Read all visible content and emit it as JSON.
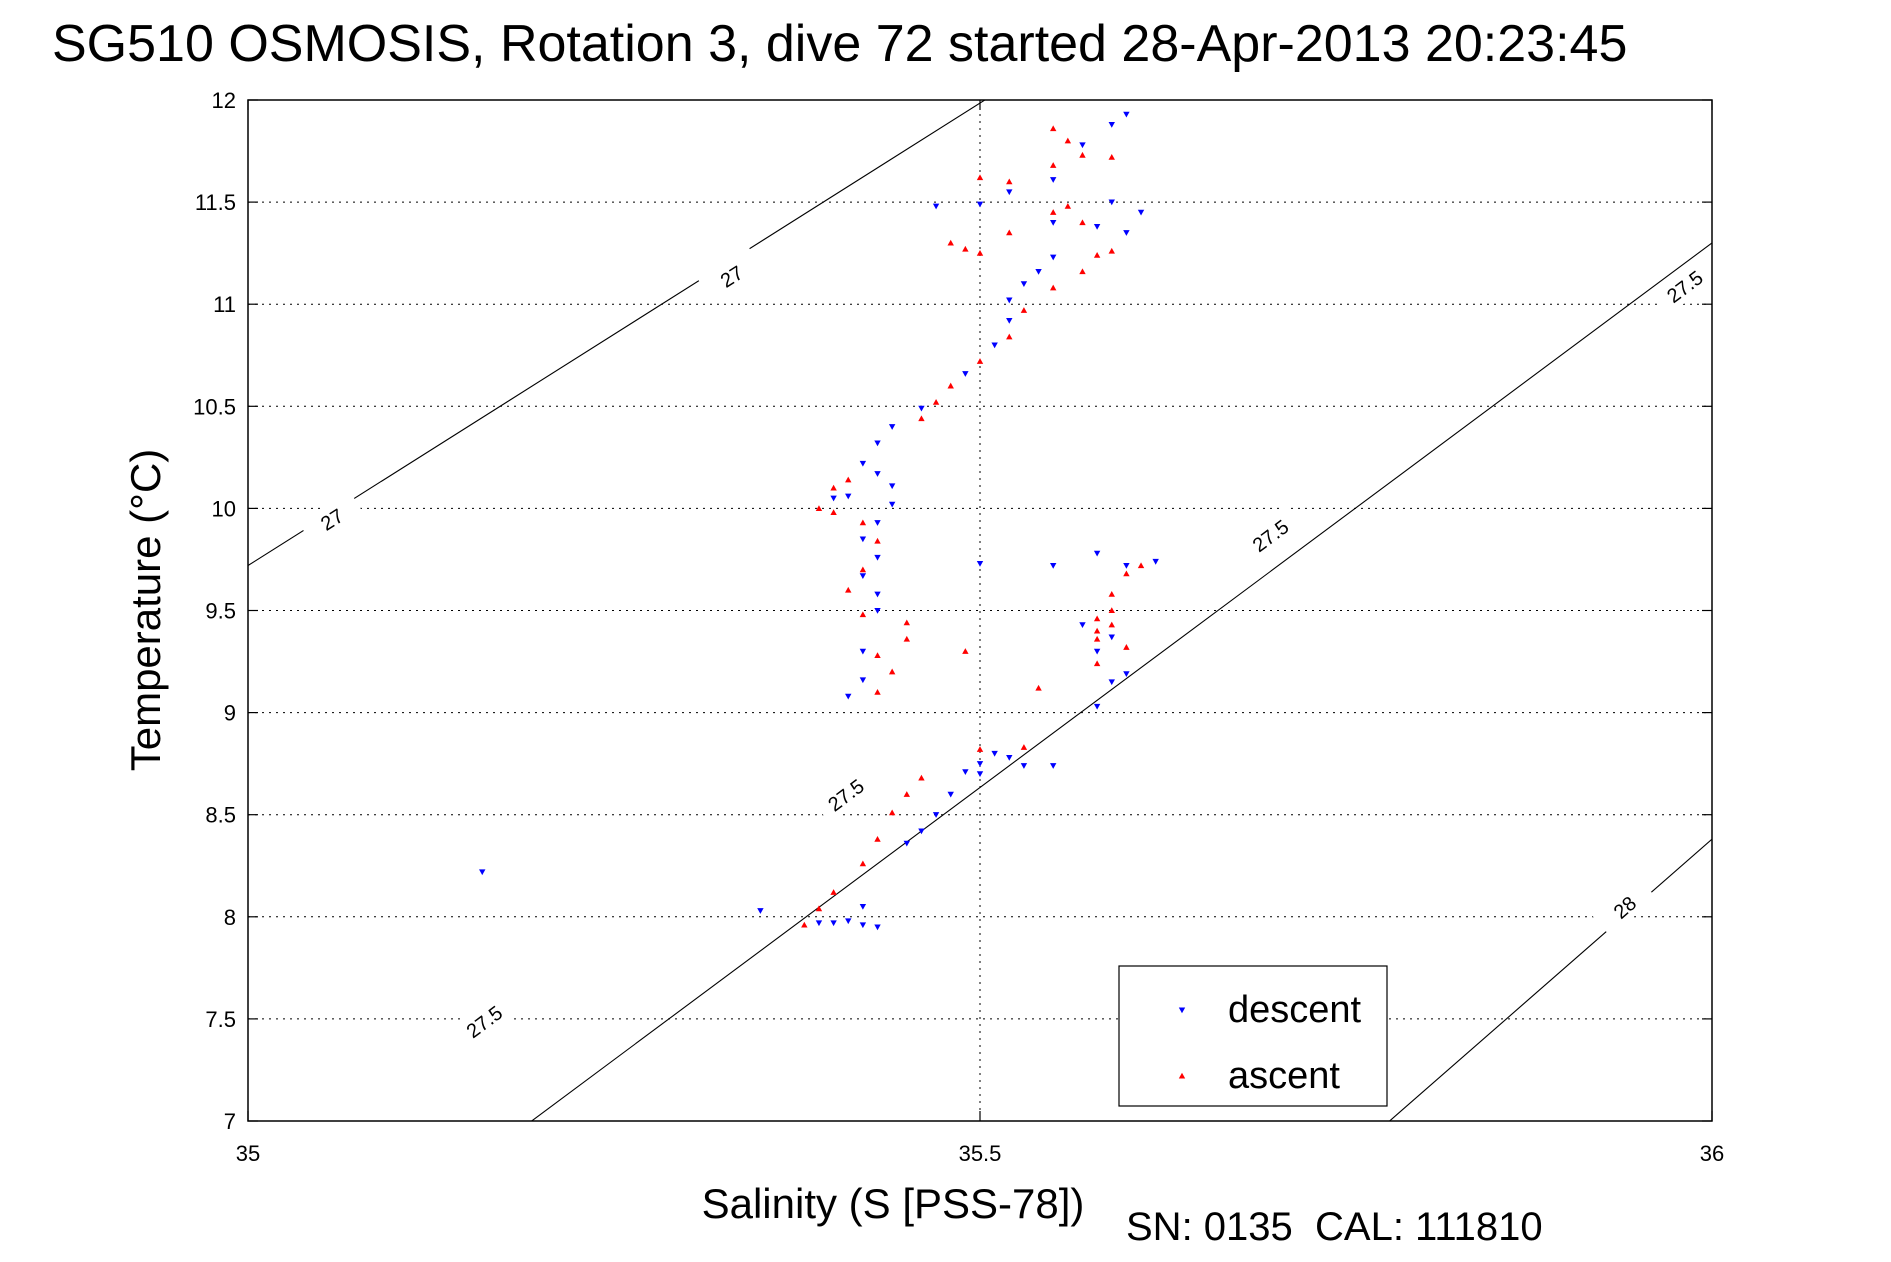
{
  "title": "SG510 OSMOSIS, Rotation 3, dive 72 started 28-Apr-2013 20:23:45",
  "footer": "SN: 0135  CAL: 111810",
  "chart_data": {
    "type": "scatter",
    "xlabel": "Salinity (S [PSS-78])",
    "ylabel": "Temperature (°C)",
    "xlim": [
      35,
      36
    ],
    "ylim": [
      7,
      12
    ],
    "xticks": [
      35,
      35.5,
      36
    ],
    "xtick_labels": [
      "35",
      "35.5",
      "36"
    ],
    "yticks": [
      7,
      7.5,
      8,
      8.5,
      9,
      9.5,
      10,
      10.5,
      11,
      11.5,
      12
    ],
    "ytick_labels": [
      "7",
      "7.5",
      "8",
      "8.5",
      "9",
      "9.5",
      "10",
      "10.5",
      "11",
      "11.5",
      "12"
    ],
    "grid": true,
    "legend_position": "bottom-right",
    "series": [
      {
        "name": "descent",
        "color": "#0000ff",
        "marker": "down-triangle",
        "points": [
          [
            35.16,
            8.22
          ],
          [
            35.35,
            8.03
          ],
          [
            35.39,
            7.97
          ],
          [
            35.4,
            7.97
          ],
          [
            35.41,
            7.98
          ],
          [
            35.42,
            7.96
          ],
          [
            35.43,
            7.95
          ],
          [
            35.42,
            8.05
          ],
          [
            35.45,
            8.36
          ],
          [
            35.46,
            8.42
          ],
          [
            35.47,
            8.5
          ],
          [
            35.48,
            8.6
          ],
          [
            35.49,
            8.71
          ],
          [
            35.5,
            8.75
          ],
          [
            35.51,
            8.8
          ],
          [
            35.52,
            8.78
          ],
          [
            35.53,
            8.74
          ],
          [
            35.41,
            9.08
          ],
          [
            35.42,
            9.16
          ],
          [
            35.42,
            9.3
          ],
          [
            35.43,
            9.5
          ],
          [
            35.43,
            9.58
          ],
          [
            35.42,
            9.67
          ],
          [
            35.43,
            9.76
          ],
          [
            35.42,
            9.85
          ],
          [
            35.43,
            9.93
          ],
          [
            35.44,
            10.02
          ],
          [
            35.44,
            10.11
          ],
          [
            35.43,
            10.17
          ],
          [
            35.41,
            10.06
          ],
          [
            35.4,
            10.05
          ],
          [
            35.42,
            10.22
          ],
          [
            35.43,
            10.32
          ],
          [
            35.44,
            10.4
          ],
          [
            35.46,
            10.49
          ],
          [
            35.49,
            10.66
          ],
          [
            35.51,
            10.8
          ],
          [
            35.52,
            10.92
          ],
          [
            35.52,
            11.02
          ],
          [
            35.53,
            11.1
          ],
          [
            35.54,
            11.16
          ],
          [
            35.55,
            11.23
          ],
          [
            35.5,
            11.49
          ],
          [
            35.47,
            11.48
          ],
          [
            35.52,
            11.55
          ],
          [
            35.55,
            11.61
          ],
          [
            35.57,
            11.78
          ],
          [
            35.59,
            11.88
          ],
          [
            35.6,
            11.93
          ],
          [
            35.55,
            11.4
          ],
          [
            35.58,
            11.38
          ],
          [
            35.6,
            11.35
          ],
          [
            35.61,
            11.45
          ],
          [
            35.59,
            11.5
          ],
          [
            35.5,
            9.73
          ],
          [
            35.55,
            9.72
          ],
          [
            35.58,
            9.78
          ],
          [
            35.6,
            9.72
          ],
          [
            35.62,
            9.74
          ],
          [
            35.57,
            9.43
          ],
          [
            35.59,
            9.37
          ],
          [
            35.58,
            9.3
          ],
          [
            35.59,
            9.15
          ],
          [
            35.58,
            9.03
          ],
          [
            35.6,
            9.19
          ],
          [
            35.55,
            8.74
          ],
          [
            35.5,
            8.7
          ]
        ]
      },
      {
        "name": "ascent",
        "color": "#ff0000",
        "marker": "up-triangle",
        "points": [
          [
            35.38,
            7.96
          ],
          [
            35.39,
            8.04
          ],
          [
            35.4,
            8.12
          ],
          [
            35.42,
            8.26
          ],
          [
            35.43,
            8.38
          ],
          [
            35.44,
            8.51
          ],
          [
            35.45,
            8.6
          ],
          [
            35.46,
            8.68
          ],
          [
            35.5,
            8.82
          ],
          [
            35.53,
            8.83
          ],
          [
            35.54,
            9.12
          ],
          [
            35.49,
            9.3
          ],
          [
            35.43,
            9.1
          ],
          [
            35.44,
            9.2
          ],
          [
            35.43,
            9.28
          ],
          [
            35.45,
            9.36
          ],
          [
            35.45,
            9.44
          ],
          [
            35.42,
            9.48
          ],
          [
            35.41,
            9.6
          ],
          [
            35.42,
            9.7
          ],
          [
            35.43,
            9.84
          ],
          [
            35.42,
            9.93
          ],
          [
            35.4,
            9.98
          ],
          [
            35.39,
            10.0
          ],
          [
            35.4,
            10.1
          ],
          [
            35.41,
            10.14
          ],
          [
            35.46,
            10.44
          ],
          [
            35.47,
            10.52
          ],
          [
            35.48,
            10.6
          ],
          [
            35.5,
            10.72
          ],
          [
            35.52,
            10.84
          ],
          [
            35.53,
            10.97
          ],
          [
            35.55,
            11.08
          ],
          [
            35.57,
            11.16
          ],
          [
            35.58,
            11.24
          ],
          [
            35.59,
            11.26
          ],
          [
            35.48,
            11.3
          ],
          [
            35.49,
            11.27
          ],
          [
            35.5,
            11.25
          ],
          [
            35.52,
            11.35
          ],
          [
            35.55,
            11.45
          ],
          [
            35.57,
            11.4
          ],
          [
            35.56,
            11.48
          ],
          [
            35.5,
            11.62
          ],
          [
            35.52,
            11.6
          ],
          [
            35.55,
            11.68
          ],
          [
            35.57,
            11.73
          ],
          [
            35.59,
            11.72
          ],
          [
            35.56,
            11.8
          ],
          [
            35.55,
            11.86
          ],
          [
            35.58,
            9.4
          ],
          [
            35.58,
            9.36
          ],
          [
            35.59,
            9.43
          ],
          [
            35.6,
            9.32
          ],
          [
            35.58,
            9.24
          ],
          [
            35.59,
            9.58
          ],
          [
            35.6,
            9.68
          ],
          [
            35.61,
            9.72
          ],
          [
            35.59,
            9.5
          ],
          [
            35.58,
            9.46
          ]
        ]
      }
    ],
    "contours": [
      {
        "label": "27",
        "label_positions": [
          [
            35.33,
            11.14
          ],
          [
            35.057,
            9.95
          ]
        ]
      },
      {
        "label": "27.5",
        "label_positions": [
          [
            35.981,
            11.09
          ],
          [
            35.698,
            9.87
          ],
          [
            35.408,
            8.6
          ],
          [
            35.161,
            7.49
          ]
        ]
      },
      {
        "label": "28",
        "label_positions": [
          [
            35.94,
            8.05
          ]
        ]
      }
    ]
  }
}
